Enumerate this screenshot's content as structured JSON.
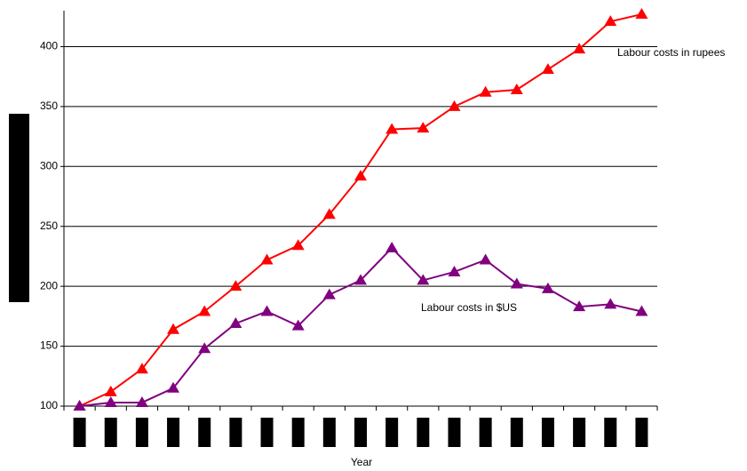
{
  "chart_data": {
    "type": "line",
    "x_label": "Year",
    "categories": [
      null,
      null,
      null,
      null,
      null,
      null,
      null,
      null,
      null,
      null,
      null,
      null,
      null,
      null,
      null,
      null,
      null,
      null,
      null
    ],
    "series": [
      {
        "name": "Labour costs in rupees",
        "color": "#ff0000",
        "values": [
          100,
          112,
          131,
          164,
          179,
          200,
          222,
          234,
          260,
          292,
          331,
          332,
          350,
          362,
          364,
          381,
          398,
          421,
          427
        ]
      },
      {
        "name": "Labour costs in $US",
        "color": "#800080",
        "values": [
          100,
          103,
          103,
          115,
          148,
          169,
          179,
          167,
          193,
          205,
          232,
          205,
          212,
          222,
          202,
          198,
          183,
          185,
          179
        ]
      }
    ],
    "ylim": [
      100,
      430
    ],
    "yticks": [
      100,
      150,
      200,
      250,
      300,
      350,
      400
    ],
    "grid": true
  }
}
